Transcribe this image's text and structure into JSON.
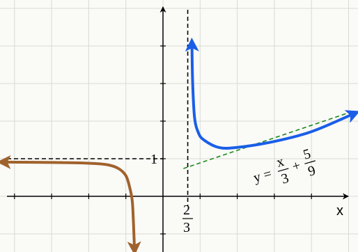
{
  "chart_data": {
    "type": "line",
    "grid": true,
    "x_axis_label": "x",
    "vertical_asymptote": {
      "x": 0.667,
      "label_num": "2",
      "label_den": "3"
    },
    "horizontal_asymptote": {
      "y": 1,
      "label": "1"
    },
    "oblique_asymptote": {
      "equation": {
        "lhs": "y =",
        "n1": "x",
        "d1": "3",
        "plus": "+",
        "n2": "5",
        "d2": "9"
      },
      "color": "#1a8a1a",
      "slope": 0.3333,
      "intercept": 0.5556,
      "x_range": [
        0.55,
        5.1
      ]
    },
    "series": [
      {
        "color": "#a0622d",
        "points": [
          [
            -4.25,
            0.91
          ],
          [
            -3,
            0.9
          ],
          [
            -2,
            0.88
          ],
          [
            -1.5,
            0.84
          ],
          [
            -1.2,
            0.74
          ],
          [
            -1.0,
            0.55
          ],
          [
            -0.9,
            0.25
          ],
          [
            -0.83,
            -0.1
          ],
          [
            -0.8,
            -0.6
          ],
          [
            -0.77,
            -1.35
          ]
        ],
        "arrows": [
          "start",
          "end"
        ]
      },
      {
        "color": "#1a5ee8",
        "points": [
          [
            0.78,
            4.0
          ],
          [
            0.8,
            3.0
          ],
          [
            0.85,
            2.1
          ],
          [
            0.95,
            1.7
          ],
          [
            1.1,
            1.5
          ],
          [
            1.5,
            1.3
          ],
          [
            2.0,
            1.3
          ],
          [
            3.0,
            1.46
          ],
          [
            4.0,
            1.72
          ],
          [
            5.1,
            2.18
          ]
        ],
        "arrows": [
          "start",
          "end"
        ]
      }
    ]
  }
}
